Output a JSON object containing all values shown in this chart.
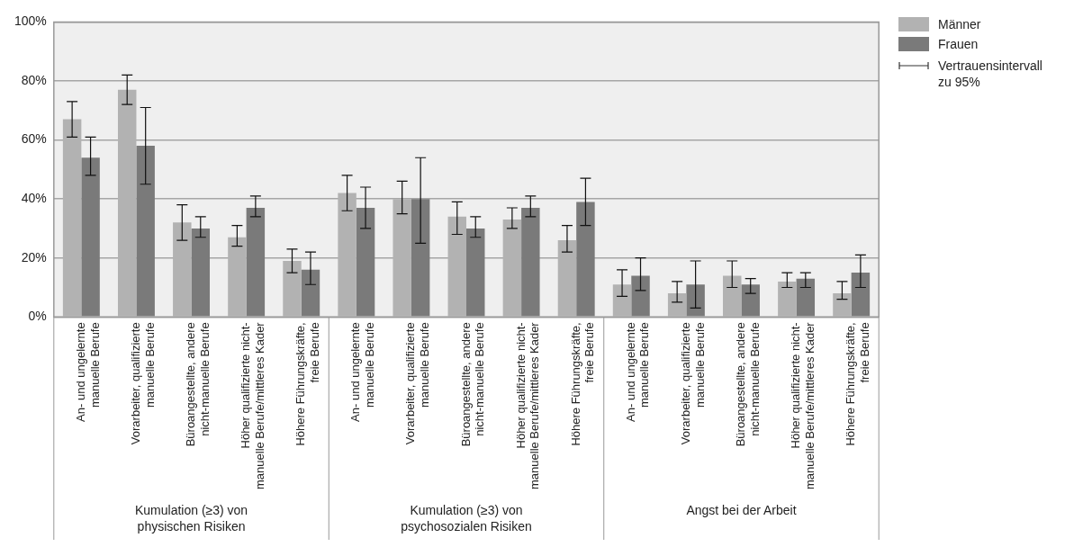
{
  "chart_data": {
    "type": "bar",
    "categories": [
      "An- und ungelernte\nmanuelle Berufe",
      "Vorarbeiter, qualifizierte\nmanuelle Berufe",
      "Büroangestellte, andere\nnicht-manuelle Berufe",
      "Höher qualifizierte nicht-\nmanuelle Berufe/mittleres Kader",
      "Höhere Führungskräfte,\nfreie Berufe",
      "An- und ungelernte\nmanuelle Berufe",
      "Vorarbeiter, qualifizierte\nmanuelle Berufe",
      "Büroangestellte, andere\nnicht-manuelle Berufe",
      "Höher qualifizierte nicht-\nmanuelle Berufe/mittleres Kader",
      "Höhere Führungskräfte,\nfreie Berufe",
      "An- und ungelernte\nmanuelle Berufe",
      "Vorarbeiter, qualifizierte\nmanuelle Berufe",
      "Büroangestellte, andere\nnicht-manuelle Berufe",
      "Höher qualifizierte nicht-\nmanuelle Berufe/mittleres Kader",
      "Höhere Führungskräfte,\nfreie Berufe"
    ],
    "series": [
      {
        "name": "Männer",
        "color": "#b2b2b2",
        "values": [
          67,
          77,
          32,
          27,
          19,
          42,
          40,
          34,
          33,
          26,
          11,
          8,
          14,
          12,
          8
        ],
        "errors": [
          [
            61,
            73
          ],
          [
            72,
            82
          ],
          [
            26,
            38
          ],
          [
            24,
            31
          ],
          [
            15,
            23
          ],
          [
            36,
            48
          ],
          [
            35,
            46
          ],
          [
            28,
            39
          ],
          [
            30,
            37
          ],
          [
            22,
            31
          ],
          [
            7,
            16
          ],
          [
            5,
            12
          ],
          [
            10,
            19
          ],
          [
            10,
            15
          ],
          [
            6,
            12
          ]
        ]
      },
      {
        "name": "Frauen",
        "color": "#7a7a7a",
        "values": [
          54,
          58,
          30,
          37,
          16,
          37,
          40,
          30,
          37,
          39,
          14,
          11,
          11,
          13,
          15
        ],
        "errors": [
          [
            48,
            61
          ],
          [
            45,
            71
          ],
          [
            27,
            34
          ],
          [
            34,
            41
          ],
          [
            11,
            22
          ],
          [
            30,
            44
          ],
          [
            25,
            54
          ],
          [
            27,
            34
          ],
          [
            34,
            41
          ],
          [
            31,
            47
          ],
          [
            9,
            20
          ],
          [
            3,
            19
          ],
          [
            8,
            13
          ],
          [
            10,
            15
          ],
          [
            10,
            21
          ]
        ]
      }
    ],
    "ylim": [
      0,
      100
    ],
    "yticks": [
      {
        "value": 0,
        "label": "0%"
      },
      {
        "value": 20,
        "label": "20%"
      },
      {
        "value": 40,
        "label": "40%"
      },
      {
        "value": 60,
        "label": "60%"
      },
      {
        "value": 80,
        "label": "80%"
      },
      {
        "value": 100,
        "label": "100%"
      }
    ],
    "grid": "y",
    "legend": "top right",
    "annotations": [
      "Kumulation (≥3) von\nphysischen Risiken",
      "Kumulation (≥3) von\npsychosozialen Risiken",
      "Angst bei der Arbeit",
      "Vertrauensintervall\nzu 95%"
    ]
  }
}
